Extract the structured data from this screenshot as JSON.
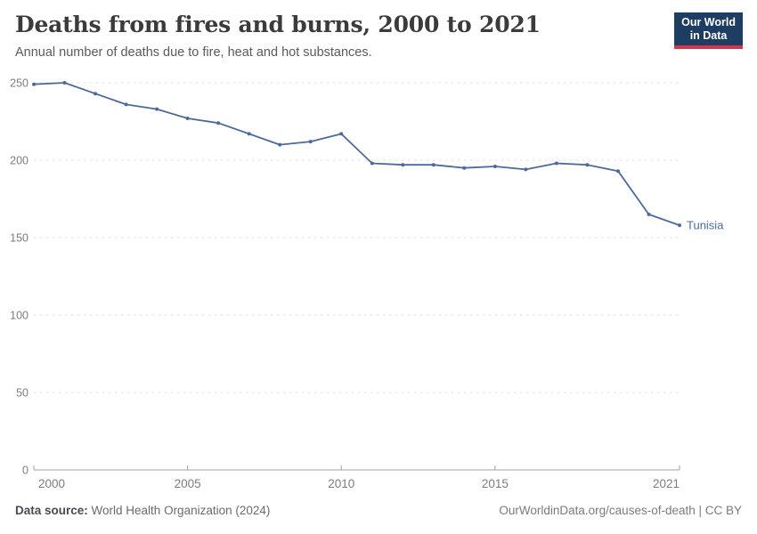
{
  "header": {
    "title": "Deaths from fires and burns, 2000 to 2021",
    "subtitle": "Annual number of deaths due to fire, heat and hot substances.",
    "logo": {
      "line1": "Our World",
      "line2": "in Data"
    }
  },
  "chart_data": {
    "type": "line",
    "title": "Deaths from fires and burns, 2000 to 2021",
    "subtitle": "Annual number of deaths due to fire, heat and hot substances.",
    "x": [
      2000,
      2001,
      2002,
      2003,
      2004,
      2005,
      2006,
      2007,
      2008,
      2009,
      2010,
      2011,
      2012,
      2013,
      2014,
      2015,
      2016,
      2017,
      2018,
      2019,
      2020,
      2021
    ],
    "series": [
      {
        "name": "Tunisia",
        "color": "#4C6A9C",
        "values": [
          249,
          250,
          243,
          236,
          233,
          227,
          224,
          217,
          210,
          212,
          217,
          198,
          197,
          197,
          195,
          196,
          194,
          198,
          197,
          193,
          165,
          158
        ]
      }
    ],
    "xlim": [
      2000,
      2021
    ],
    "ylim": [
      0,
      250
    ],
    "yticks": [
      0,
      50,
      100,
      150,
      200,
      250
    ],
    "xticks": [
      2000,
      2005,
      2010,
      2015,
      2021
    ],
    "grid": "horizontal-dashed",
    "legend": "end-of-line-label"
  },
  "footer": {
    "datasource_label": "Data source:",
    "datasource_value": " World Health Organization (2024)",
    "credit": "OurWorldinData.org/causes-of-death | CC BY"
  },
  "colors": {
    "line": "#4C6A9C",
    "grid": "#dcdcdc",
    "axis": "#a0a0a0",
    "tick_label": "#7d7d7d",
    "title": "#3b3b3b",
    "subtitle": "#5a5a5a",
    "logo_bg": "#1d3d63",
    "logo_red": "#d3354a",
    "footer_text": "#6b6b6b",
    "credit_text": "#7b7b7b"
  }
}
